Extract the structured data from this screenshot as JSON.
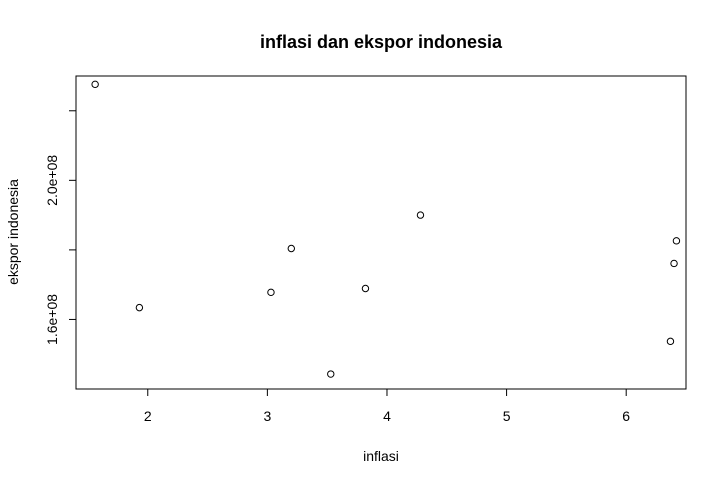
{
  "chart_data": {
    "type": "scatter",
    "title": "inflasi dan ekspor indonesia",
    "xlabel": "inflasi",
    "ylabel": "ekspor indonesia",
    "xlim": [
      1.4,
      6.5
    ],
    "ylim": [
      140000000,
      230000000
    ],
    "x_ticks": [
      2,
      3,
      4,
      5,
      6
    ],
    "x_tick_labels": [
      "2",
      "3",
      "4",
      "5",
      "6"
    ],
    "y_ticks": [
      160000000,
      180000000,
      200000000,
      220000000
    ],
    "y_tick_labels": [
      "1.6e+08",
      "",
      "2.0e+08",
      ""
    ],
    "grid": false,
    "points": [
      {
        "x": 1.56,
        "y": 227600000
      },
      {
        "x": 1.93,
        "y": 163400000
      },
      {
        "x": 3.03,
        "y": 167800000
      },
      {
        "x": 3.2,
        "y": 180400000
      },
      {
        "x": 3.53,
        "y": 144300000
      },
      {
        "x": 3.82,
        "y": 168900000
      },
      {
        "x": 4.28,
        "y": 190000000
      },
      {
        "x": 6.37,
        "y": 153700000
      },
      {
        "x": 6.4,
        "y": 176100000
      },
      {
        "x": 6.42,
        "y": 182600000
      }
    ]
  }
}
